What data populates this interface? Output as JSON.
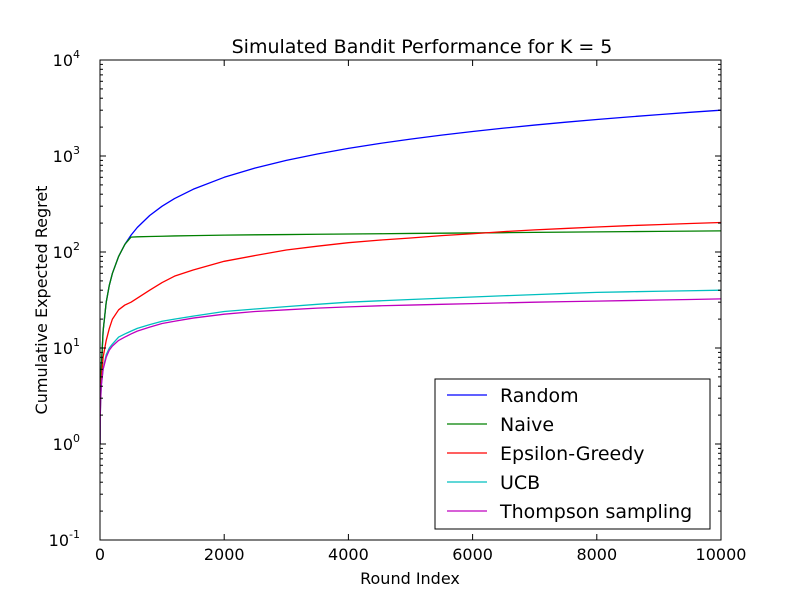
{
  "chart_data": {
    "type": "line",
    "title": "Simulated Bandit Performance for K = 5",
    "xlabel": "Round Index",
    "ylabel": "Cumulative Expected Regret",
    "xlim": [
      0,
      10000
    ],
    "ylim": [
      0.1,
      10000
    ],
    "yscale": "log",
    "grid": false,
    "legend_position": "lower-right",
    "x_ticks": [
      {
        "value": 0,
        "label": "0"
      },
      {
        "value": 2000,
        "label": "2000"
      },
      {
        "value": 4000,
        "label": "4000"
      },
      {
        "value": 6000,
        "label": "6000"
      },
      {
        "value": 8000,
        "label": "8000"
      },
      {
        "value": 10000,
        "label": "10000"
      }
    ],
    "y_ticks": [
      {
        "value": 0.1,
        "base": "10",
        "exp": "-1"
      },
      {
        "value": 1,
        "base": "10",
        "exp": "0"
      },
      {
        "value": 10,
        "base": "10",
        "exp": "1"
      },
      {
        "value": 100,
        "base": "10",
        "exp": "2"
      },
      {
        "value": 1000,
        "base": "10",
        "exp": "3"
      },
      {
        "value": 10000,
        "base": "10",
        "exp": "4"
      }
    ],
    "x": [
      0,
      5,
      10,
      20,
      50,
      100,
      150,
      200,
      300,
      400,
      500,
      600,
      800,
      1000,
      1200,
      1500,
      2000,
      2500,
      3000,
      3500,
      4000,
      4500,
      5000,
      5500,
      6000,
      6500,
      7000,
      7500,
      8000,
      8500,
      9000,
      9500,
      10000
    ],
    "series": [
      {
        "name": "Random",
        "color": "#0000ff",
        "values": [
          1,
          2.5,
          3.6,
          6,
          15,
          30,
          45,
          60,
          90,
          120,
          150,
          180,
          240,
          300,
          360,
          450,
          600,
          750,
          900,
          1050,
          1200,
          1350,
          1500,
          1650,
          1800,
          1950,
          2100,
          2250,
          2400,
          2550,
          2700,
          2850,
          3000
        ]
      },
      {
        "name": "Naive",
        "color": "#008000",
        "values": [
          1,
          2.5,
          3.6,
          6,
          15,
          30,
          45,
          60,
          90,
          120,
          143,
          144,
          145,
          146,
          147,
          148,
          150,
          151,
          152,
          153,
          154,
          155,
          156,
          157,
          158,
          159,
          160,
          161,
          162,
          163,
          164,
          165,
          166
        ]
      },
      {
        "name": "Epsilon-Greedy",
        "color": "#ff0000",
        "values": [
          1,
          2.2,
          3,
          4.5,
          8,
          12,
          16,
          20,
          25,
          28,
          30,
          33,
          40,
          48,
          56,
          65,
          80,
          92,
          105,
          115,
          125,
          133,
          140,
          148,
          155,
          163,
          170,
          176,
          182,
          188,
          193,
          198,
          203
        ]
      },
      {
        "name": "UCB",
        "color": "#00bfbf",
        "values": [
          1,
          2,
          2.8,
          4,
          6,
          8.5,
          10,
          11,
          13,
          14,
          15,
          16,
          17.5,
          19,
          20,
          21.5,
          24,
          25.5,
          27,
          28.5,
          30,
          31,
          32,
          33,
          34,
          35,
          36,
          37,
          38,
          38.5,
          39,
          39.5,
          40
        ]
      },
      {
        "name": "Thompson sampling",
        "color": "#bf00bf",
        "values": [
          1,
          2,
          2.8,
          4,
          6,
          8,
          9.5,
          10.5,
          12,
          13,
          14,
          15,
          16.5,
          18,
          19,
          20.5,
          22.5,
          24,
          25,
          26,
          26.8,
          27.5,
          28,
          28.5,
          29,
          29.5,
          30,
          30.4,
          30.8,
          31.2,
          31.6,
          32,
          32.5
        ]
      }
    ]
  }
}
